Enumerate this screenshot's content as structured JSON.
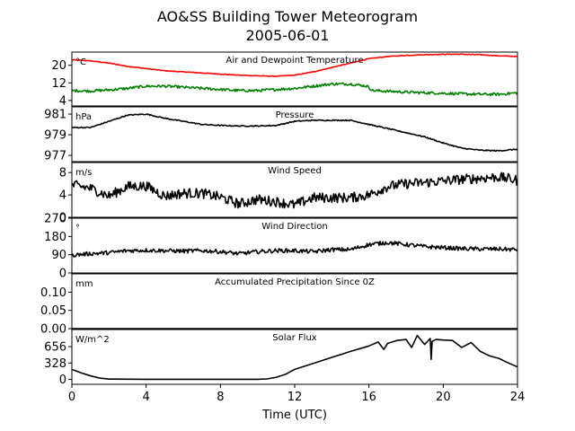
{
  "figure": {
    "title_line1": "AO&SS Building Tower Meteorogram",
    "title_line2": "2005-06-01",
    "xlabel": "Time (UTC)"
  },
  "chart_data": [
    {
      "type": "line",
      "title": "Air and Dewpoint Temperature",
      "unit": "°C",
      "xlim": [
        0,
        24
      ],
      "ylim": [
        1.5,
        26
      ],
      "yticks": [
        4,
        12,
        20
      ],
      "series": [
        {
          "color": "#ff0000",
          "noise": 0.15,
          "x": [
            0,
            1,
            2,
            3,
            4,
            5,
            6,
            7,
            8,
            9,
            10,
            11,
            12,
            13,
            14,
            15,
            16,
            17,
            18,
            19,
            20,
            21,
            22,
            23,
            24
          ],
          "values": [
            22.5,
            22,
            21,
            19.5,
            18.5,
            17.5,
            17,
            16.5,
            16,
            15.5,
            15.2,
            15,
            15.5,
            17,
            19,
            21,
            23,
            24,
            24.5,
            24.8,
            25,
            25,
            24.8,
            24.3,
            24
          ]
        },
        {
          "color": "#008000",
          "noise": 0.6,
          "x": [
            0,
            1,
            2,
            3,
            4,
            5,
            6,
            7,
            8,
            9,
            10,
            11,
            12,
            13,
            14,
            15,
            15.9,
            16.2,
            17,
            18,
            19,
            20,
            21,
            22,
            23,
            24
          ],
          "values": [
            8.5,
            8.3,
            8.8,
            9.5,
            10.5,
            10.5,
            10,
            9.5,
            9,
            8.5,
            8.5,
            9,
            9.5,
            10.5,
            11.5,
            11.5,
            10.5,
            8.5,
            8.2,
            7.8,
            7.5,
            7.3,
            7,
            6.8,
            6.8,
            7.5
          ]
        }
      ]
    },
    {
      "type": "line",
      "title": "Pressure",
      "unit": "hPa",
      "xlim": [
        0,
        24
      ],
      "ylim": [
        976.4,
        981.7
      ],
      "yticks": [
        977,
        979,
        981
      ],
      "series": [
        {
          "color": "#000000",
          "noise": 0.05,
          "x": [
            0,
            1,
            2,
            3,
            4,
            5,
            6,
            7,
            8,
            9,
            10,
            11,
            12,
            13,
            14,
            15,
            16,
            17,
            18,
            19,
            20,
            21,
            22,
            23,
            24
          ],
          "values": [
            979.7,
            979.7,
            980.3,
            980.9,
            981.0,
            980.6,
            980.3,
            980.0,
            979.9,
            979.85,
            979.85,
            979.9,
            980.3,
            980.4,
            980.4,
            980.4,
            980.0,
            979.6,
            979.2,
            978.8,
            978.2,
            977.7,
            977.5,
            977.45,
            977.6
          ]
        }
      ]
    },
    {
      "type": "line",
      "title": "Wind Speed",
      "unit": "m/s",
      "xlim": [
        0,
        24
      ],
      "ylim": [
        0,
        9.8
      ],
      "yticks": [
        0,
        4,
        8
      ],
      "series": [
        {
          "color": "#000000",
          "noise": 0.9,
          "x": [
            0,
            1,
            2,
            3,
            4,
            5,
            6,
            7,
            8,
            9,
            10,
            11,
            12,
            13,
            14,
            15,
            16,
            17,
            18,
            19,
            20,
            21,
            22,
            23,
            24
          ],
          "values": [
            5.8,
            5.2,
            3.8,
            5.5,
            5.6,
            3.8,
            4.3,
            4.3,
            3.6,
            2.4,
            3.2,
            2.8,
            2.2,
            3.5,
            3.5,
            3.5,
            4.0,
            5.5,
            6.0,
            6.2,
            6.5,
            6.8,
            7.0,
            7.2,
            6.6
          ]
        }
      ]
    },
    {
      "type": "line",
      "title": "Wind Direction",
      "unit": "°",
      "xlim": [
        0,
        24
      ],
      "ylim": [
        0,
        270
      ],
      "yticks": [
        0,
        90,
        180,
        270
      ],
      "series": [
        {
          "color": "#000000",
          "noise": 10,
          "x": [
            0,
            1,
            2,
            3,
            4,
            5,
            6,
            7,
            8,
            9,
            10,
            11,
            12,
            13,
            14,
            15,
            16,
            17,
            18,
            19,
            20,
            21,
            22,
            23,
            24
          ],
          "values": [
            88,
            95,
            100,
            110,
            112,
            110,
            108,
            110,
            105,
            95,
            105,
            110,
            110,
            105,
            115,
            115,
            140,
            150,
            140,
            130,
            125,
            120,
            118,
            118,
            115
          ]
        }
      ]
    },
    {
      "type": "line",
      "title": "Accumulated Precipitation Since 0Z",
      "unit": "mm",
      "xlim": [
        0,
        24
      ],
      "ylim": [
        0,
        0.15
      ],
      "yticks": [
        0.0,
        0.05,
        0.1
      ],
      "ytick_labels": [
        "0.00",
        "0.05",
        "0.10"
      ],
      "series": [
        {
          "color": "#000000",
          "noise": 0,
          "x": [
            0,
            24
          ],
          "values": [
            0,
            0
          ]
        }
      ]
    },
    {
      "type": "line",
      "title": "Solar Flux",
      "unit": "W/m^2",
      "xlim": [
        0,
        24
      ],
      "ylim": [
        -100,
        1000
      ],
      "yticks": [
        0,
        328,
        656
      ],
      "series": [
        {
          "color": "#000000",
          "noise": 0,
          "x": [
            0,
            0.5,
            1,
            1.5,
            2,
            4,
            6,
            8,
            10,
            10.5,
            11,
            11.5,
            12,
            13,
            14,
            15,
            16,
            16.5,
            16.8,
            17,
            17.5,
            18,
            18.3,
            18.6,
            19,
            19.3,
            19.35,
            19.4,
            19.6,
            20,
            20.5,
            21,
            21.5,
            22,
            22.5,
            23,
            23.5,
            24
          ],
          "values": [
            200,
            130,
            70,
            25,
            5,
            0,
            0,
            0,
            0,
            8,
            40,
            100,
            200,
            320,
            440,
            560,
            670,
            750,
            600,
            720,
            780,
            800,
            640,
            880,
            700,
            820,
            400,
            760,
            800,
            790,
            780,
            640,
            740,
            560,
            470,
            420,
            330,
            250
          ]
        }
      ]
    }
  ]
}
